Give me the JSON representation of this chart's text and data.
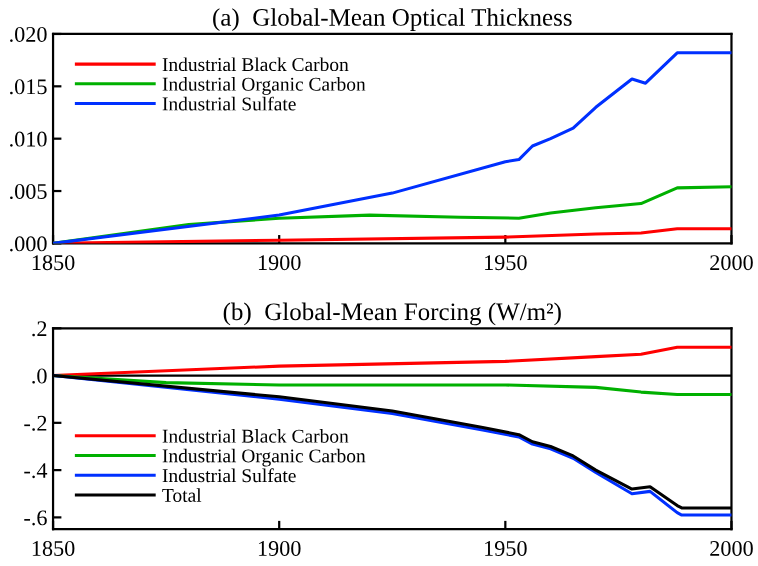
{
  "chart_data": [
    {
      "type": "line",
      "title": "(a)  Global-Mean Optical Thickness",
      "legend": "top left",
      "grid": false,
      "marker": "none",
      "line_style": "solid",
      "xlim": [
        1850,
        2000
      ],
      "xticks": [
        1850,
        1900,
        1950,
        2000
      ],
      "ylim": [
        0,
        0.02
      ],
      "yticks": [
        {
          "value": 0,
          "label": ".000"
        },
        {
          "value": 0.005,
          "label": ".005"
        },
        {
          "value": 0.01,
          "label": ".010"
        },
        {
          "value": 0.015,
          "label": ".015"
        },
        {
          "value": 0.02,
          "label": ".020"
        }
      ],
      "series": [
        {
          "name": "Industrial Black Carbon",
          "color": "#ff0000",
          "x": [
            1850,
            1900,
            1950,
            1970,
            1980,
            1988,
            2000
          ],
          "values": [
            0,
            0.0003,
            0.0006,
            0.0009,
            0.001,
            0.0014,
            0.0014
          ]
        },
        {
          "name": "Industrial Organic Carbon",
          "color": "#00b000",
          "x": [
            1850,
            1880,
            1900,
            1920,
            1940,
            1953,
            1960,
            1970,
            1980,
            1988,
            2000
          ],
          "values": [
            0,
            0.0018,
            0.0024,
            0.0027,
            0.0025,
            0.0024,
            0.0029,
            0.0034,
            0.0038,
            0.0053,
            0.0054
          ]
        },
        {
          "name": "Industrial Sulfate",
          "color": "#0030ff",
          "x": [
            1850,
            1900,
            1925,
            1950,
            1953,
            1956,
            1960,
            1965,
            1970,
            1978,
            1981,
            1988,
            2000
          ],
          "values": [
            0,
            0.0027,
            0.0048,
            0.0078,
            0.008,
            0.0093,
            0.01,
            0.011,
            0.013,
            0.0157,
            0.0153,
            0.0182,
            0.0182
          ]
        }
      ]
    },
    {
      "type": "line",
      "title": "(b)  Global-Mean Forcing (W/m²)",
      "legend": "bottom left",
      "grid": false,
      "marker": "none",
      "line_style": "solid",
      "xlim": [
        1850,
        2000
      ],
      "xticks": [
        1850,
        1900,
        1950,
        2000
      ],
      "ylim": [
        -0.65,
        0.2
      ],
      "yticks": [
        {
          "value": -0.6,
          "label": "-.6"
        },
        {
          "value": -0.4,
          "label": "-.4"
        },
        {
          "value": -0.2,
          "label": "-.2"
        },
        {
          "value": 0,
          "label": ".0"
        },
        {
          "value": 0.2,
          "label": ".2"
        }
      ],
      "ref_lines": [
        {
          "axis": "y",
          "value": 0,
          "color": "#000000"
        }
      ],
      "series": [
        {
          "name": "Industrial Black Carbon",
          "color": "#ff0000",
          "x": [
            1850,
            1900,
            1950,
            1970,
            1980,
            1988,
            2000
          ],
          "values": [
            0,
            0.04,
            0.06,
            0.08,
            0.09,
            0.12,
            0.12
          ]
        },
        {
          "name": "Industrial Organic Carbon",
          "color": "#00b000",
          "x": [
            1850,
            1875,
            1900,
            1950,
            1970,
            1980,
            1988,
            2000
          ],
          "values": [
            0,
            -0.03,
            -0.04,
            -0.04,
            -0.05,
            -0.07,
            -0.08,
            -0.08
          ]
        },
        {
          "name": "Industrial Sulfate",
          "color": "#0030ff",
          "x": [
            1850,
            1900,
            1925,
            1945,
            1953,
            1956,
            1960,
            1965,
            1970,
            1978,
            1982,
            1988,
            1989,
            2000
          ],
          "values": [
            0,
            -0.1,
            -0.16,
            -0.23,
            -0.26,
            -0.29,
            -0.31,
            -0.35,
            -0.41,
            -0.5,
            -0.49,
            -0.58,
            -0.59,
            -0.59
          ]
        },
        {
          "name": "Total",
          "color": "#000000",
          "x": [
            1850,
            1900,
            1925,
            1945,
            1953,
            1956,
            1960,
            1965,
            1970,
            1978,
            1982,
            1988,
            1989,
            2000
          ],
          "values": [
            0,
            -0.09,
            -0.15,
            -0.22,
            -0.25,
            -0.28,
            -0.3,
            -0.34,
            -0.4,
            -0.48,
            -0.47,
            -0.55,
            -0.56,
            -0.56
          ]
        }
      ]
    }
  ]
}
